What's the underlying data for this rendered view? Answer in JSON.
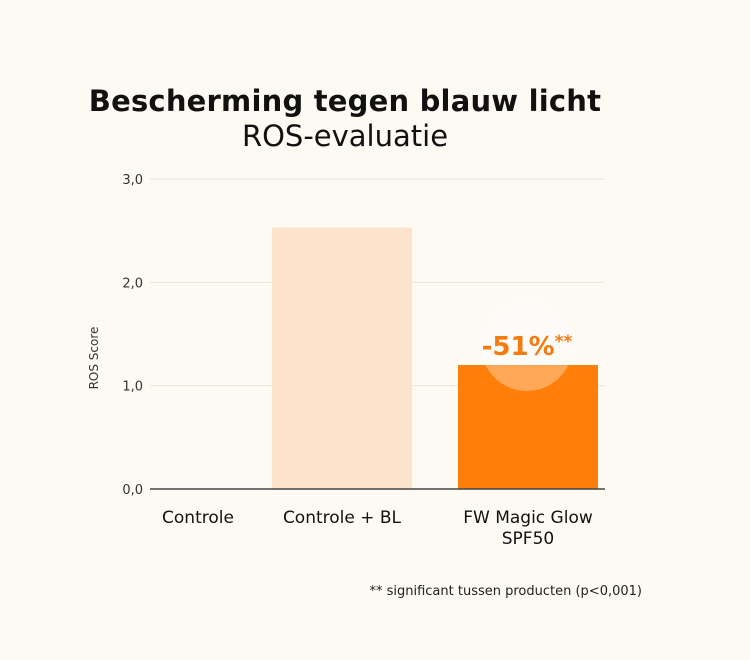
{
  "chart_data": {
    "type": "bar",
    "title": "Bescherming tegen blauw licht",
    "subtitle": "ROS-evaluatie",
    "xlabel": "",
    "ylabel": "ROS Score",
    "ylim": [
      0,
      3
    ],
    "yticks": [
      {
        "value": 0,
        "label": "0,0"
      },
      {
        "value": 1,
        "label": "1,0"
      },
      {
        "value": 2,
        "label": "2,0"
      },
      {
        "value": 3,
        "label": "3,0"
      }
    ],
    "grid": true,
    "categories": [
      {
        "label_lines": [
          "Controle"
        ],
        "value": 0,
        "color": "#fde3cc"
      },
      {
        "label_lines": [
          "Controle + BL"
        ],
        "value": 2.53,
        "color": "#fde3cc"
      },
      {
        "label_lines": [
          "FW Magic Glow",
          "SPF50"
        ],
        "value": 1.2,
        "color": "#ff7f0a"
      }
    ],
    "annotation": {
      "text": "-51%",
      "suffix": "**",
      "category_index": 2,
      "color": "#f57a10"
    },
    "footnote": "** significant tussen producten (p<0,001)",
    "colors": {
      "grid": "#e9e4dc",
      "axis": "#444444",
      "tick_label": "#333333",
      "category_label": "#111111",
      "annotation_circle": "#ffffff"
    }
  }
}
